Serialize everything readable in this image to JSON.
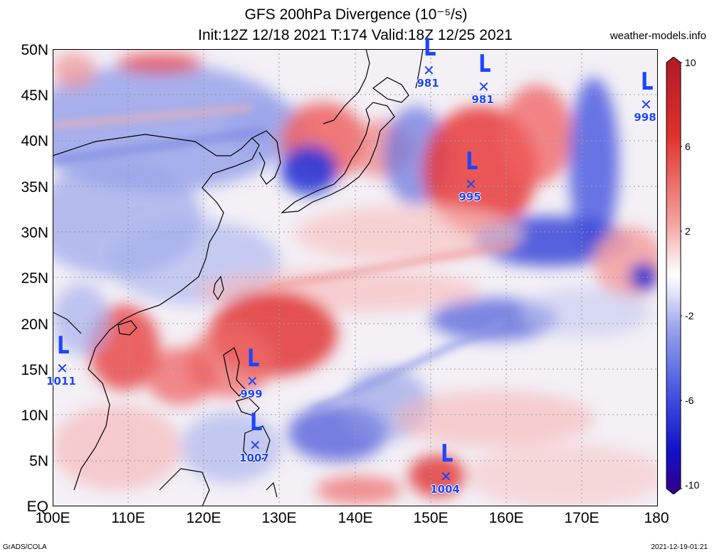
{
  "header": {
    "title_line1": "GFS 200hPa Divergence (10⁻⁵/s)",
    "title_line2": "Init:12Z 12/18 2021 T:174 Valid:18Z 12/25 2021",
    "site": "weather-models.info"
  },
  "footer": {
    "left": "GrADS/COLA",
    "right": "2021-12-19-01:21"
  },
  "axes": {
    "lat_labels": [
      "50N",
      "45N",
      "40N",
      "35N",
      "30N",
      "25N",
      "20N",
      "15N",
      "10N",
      "5N",
      "EQ"
    ],
    "lon_labels": [
      "100E",
      "110E",
      "120E",
      "130E",
      "140E",
      "150E",
      "160E",
      "170E",
      "180"
    ]
  },
  "colorbar": {
    "labels": [
      "10",
      "6",
      "2",
      "-2",
      "-6",
      "-10"
    ],
    "colors_top_to_bottom": [
      "#b2182b",
      "#e0312a",
      "#f4a3a0",
      "#fbe3e3",
      "#ffffff",
      "#e1e4f7",
      "#9aa4ea",
      "#3f4ee0",
      "#1111c8",
      "#330088"
    ]
  },
  "lows": [
    {
      "pressure": "981"
    },
    {
      "pressure": "981"
    },
    {
      "pressure": "998"
    },
    {
      "pressure": "995"
    },
    {
      "pressure": "1011"
    },
    {
      "pressure": "999"
    },
    {
      "pressure": "1007"
    },
    {
      "pressure": "1004"
    }
  ]
}
